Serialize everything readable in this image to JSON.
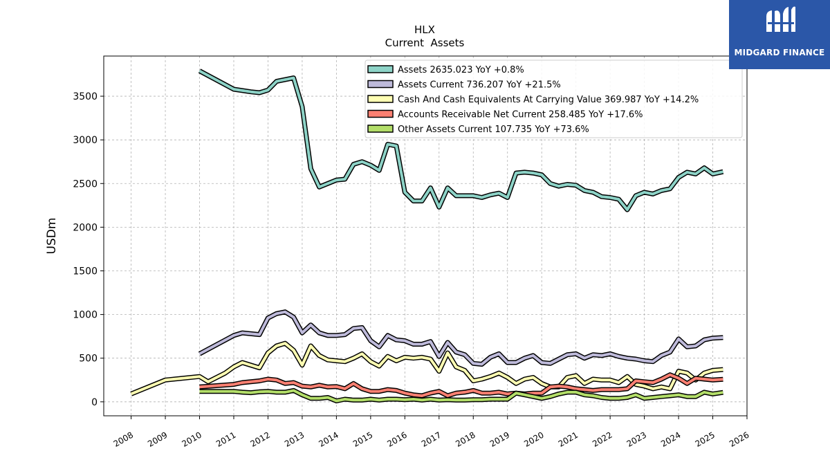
{
  "brand": {
    "name": "MIDGARD FINANCE",
    "bg_color": "#2b57a8"
  },
  "chart_data": {
    "type": "line",
    "title": "HLX",
    "subtitle": "Current  Assets",
    "ylabel": "USDm",
    "xlabel": "",
    "xlim": [
      2007.2,
      2026.0
    ],
    "ylim": [
      -160,
      3960
    ],
    "x_ticks": [
      2008,
      2009,
      2010,
      2011,
      2012,
      2013,
      2014,
      2015,
      2016,
      2017,
      2018,
      2019,
      2020,
      2021,
      2022,
      2023,
      2024,
      2025,
      2026
    ],
    "x_tick_labels": [
      "2008",
      "2009",
      "2010",
      "2011",
      "2012",
      "2013",
      "2014",
      "2015",
      "2016",
      "2017",
      "2018",
      "2019",
      "2020",
      "2021",
      "2022",
      "2023",
      "2024",
      "2025",
      "2026"
    ],
    "y_ticks": [
      0,
      500,
      1000,
      1500,
      2000,
      2500,
      3000,
      3500
    ],
    "y_tick_labels": [
      "0",
      "500",
      "1000",
      "1500",
      "2000",
      "2500",
      "3000",
      "3500"
    ],
    "grid": true,
    "legend_position": "top-right",
    "series": [
      {
        "name": "Assets  2635.023 YoY +0.8%",
        "color": "#8dd3c7",
        "points": [
          [
            2010.0,
            3790
          ],
          [
            2011.0,
            3580
          ],
          [
            2011.5,
            3550
          ],
          [
            2011.75,
            3540
          ],
          [
            2012.0,
            3570
          ],
          [
            2012.25,
            3670
          ],
          [
            2012.5,
            3690
          ],
          [
            2012.75,
            3710
          ],
          [
            2013.0,
            3380
          ],
          [
            2013.25,
            2670
          ],
          [
            2013.5,
            2460
          ],
          [
            2014.0,
            2540
          ],
          [
            2014.25,
            2550
          ],
          [
            2014.5,
            2720
          ],
          [
            2014.75,
            2750
          ],
          [
            2015.0,
            2710
          ],
          [
            2015.25,
            2650
          ],
          [
            2015.5,
            2950
          ],
          [
            2015.75,
            2930
          ],
          [
            2016.0,
            2400
          ],
          [
            2016.25,
            2300
          ],
          [
            2016.5,
            2300
          ],
          [
            2016.75,
            2450
          ],
          [
            2017.0,
            2230
          ],
          [
            2017.25,
            2450
          ],
          [
            2017.5,
            2360
          ],
          [
            2017.75,
            2360
          ],
          [
            2018.0,
            2360
          ],
          [
            2018.25,
            2340
          ],
          [
            2018.5,
            2370
          ],
          [
            2018.75,
            2390
          ],
          [
            2019.0,
            2340
          ],
          [
            2019.25,
            2620
          ],
          [
            2019.5,
            2630
          ],
          [
            2019.75,
            2620
          ],
          [
            2020.0,
            2600
          ],
          [
            2020.25,
            2500
          ],
          [
            2020.5,
            2470
          ],
          [
            2020.75,
            2490
          ],
          [
            2021.0,
            2480
          ],
          [
            2021.25,
            2420
          ],
          [
            2021.5,
            2400
          ],
          [
            2021.75,
            2350
          ],
          [
            2022.0,
            2340
          ],
          [
            2022.25,
            2320
          ],
          [
            2022.5,
            2200
          ],
          [
            2022.75,
            2360
          ],
          [
            2023.0,
            2400
          ],
          [
            2023.25,
            2380
          ],
          [
            2023.5,
            2420
          ],
          [
            2023.75,
            2440
          ],
          [
            2024.0,
            2570
          ],
          [
            2024.25,
            2630
          ],
          [
            2024.5,
            2610
          ],
          [
            2024.75,
            2680
          ],
          [
            2025.0,
            2610
          ],
          [
            2025.3,
            2635
          ]
        ]
      },
      {
        "name": "Assets Current  736.207 YoY +21.5%",
        "color": "#bebada",
        "points": [
          [
            2010.0,
            550
          ],
          [
            2011.0,
            760
          ],
          [
            2011.25,
            790
          ],
          [
            2011.75,
            770
          ],
          [
            2012.0,
            960
          ],
          [
            2012.25,
            1010
          ],
          [
            2012.5,
            1030
          ],
          [
            2012.75,
            970
          ],
          [
            2013.0,
            790
          ],
          [
            2013.25,
            880
          ],
          [
            2013.5,
            790
          ],
          [
            2013.75,
            760
          ],
          [
            2014.0,
            760
          ],
          [
            2014.25,
            770
          ],
          [
            2014.5,
            840
          ],
          [
            2014.75,
            850
          ],
          [
            2015.0,
            700
          ],
          [
            2015.25,
            630
          ],
          [
            2015.5,
            760
          ],
          [
            2015.75,
            710
          ],
          [
            2016.0,
            700
          ],
          [
            2016.25,
            660
          ],
          [
            2016.5,
            660
          ],
          [
            2016.75,
            690
          ],
          [
            2017.0,
            520
          ],
          [
            2017.25,
            680
          ],
          [
            2017.5,
            570
          ],
          [
            2017.75,
            540
          ],
          [
            2018.0,
            440
          ],
          [
            2018.25,
            430
          ],
          [
            2018.5,
            510
          ],
          [
            2018.75,
            550
          ],
          [
            2019.0,
            450
          ],
          [
            2019.25,
            450
          ],
          [
            2019.5,
            500
          ],
          [
            2019.75,
            530
          ],
          [
            2020.0,
            450
          ],
          [
            2020.25,
            440
          ],
          [
            2020.5,
            490
          ],
          [
            2020.75,
            540
          ],
          [
            2021.0,
            550
          ],
          [
            2021.25,
            500
          ],
          [
            2021.5,
            540
          ],
          [
            2021.75,
            530
          ],
          [
            2022.0,
            550
          ],
          [
            2022.25,
            520
          ],
          [
            2022.5,
            500
          ],
          [
            2022.75,
            490
          ],
          [
            2023.0,
            470
          ],
          [
            2023.25,
            460
          ],
          [
            2023.5,
            530
          ],
          [
            2023.75,
            570
          ],
          [
            2024.0,
            720
          ],
          [
            2024.25,
            630
          ],
          [
            2024.5,
            640
          ],
          [
            2024.75,
            710
          ],
          [
            2025.0,
            730
          ],
          [
            2025.3,
            736
          ]
        ]
      },
      {
        "name": "Cash And Cash Equivalents At Carrying Value  369.987 YoY +14.2%",
        "color": "#ffffb3",
        "points": [
          [
            2008.0,
            90
          ],
          [
            2009.0,
            250
          ],
          [
            2010.0,
            290
          ],
          [
            2010.25,
            230
          ],
          [
            2010.75,
            330
          ],
          [
            2011.0,
            400
          ],
          [
            2011.25,
            450
          ],
          [
            2011.75,
            390
          ],
          [
            2012.0,
            560
          ],
          [
            2012.25,
            640
          ],
          [
            2012.5,
            670
          ],
          [
            2012.75,
            590
          ],
          [
            2013.0,
            420
          ],
          [
            2013.25,
            640
          ],
          [
            2013.5,
            530
          ],
          [
            2013.75,
            480
          ],
          [
            2014.0,
            470
          ],
          [
            2014.25,
            460
          ],
          [
            2014.5,
            500
          ],
          [
            2014.75,
            550
          ],
          [
            2015.0,
            460
          ],
          [
            2015.25,
            410
          ],
          [
            2015.5,
            520
          ],
          [
            2015.75,
            470
          ],
          [
            2016.0,
            510
          ],
          [
            2016.25,
            500
          ],
          [
            2016.5,
            510
          ],
          [
            2016.75,
            490
          ],
          [
            2017.0,
            350
          ],
          [
            2017.25,
            560
          ],
          [
            2017.5,
            400
          ],
          [
            2017.75,
            360
          ],
          [
            2018.0,
            240
          ],
          [
            2018.25,
            260
          ],
          [
            2018.5,
            290
          ],
          [
            2018.75,
            330
          ],
          [
            2019.0,
            280
          ],
          [
            2019.25,
            210
          ],
          [
            2019.5,
            260
          ],
          [
            2019.75,
            280
          ],
          [
            2020.0,
            210
          ],
          [
            2020.25,
            170
          ],
          [
            2020.5,
            170
          ],
          [
            2020.75,
            280
          ],
          [
            2021.0,
            300
          ],
          [
            2021.25,
            210
          ],
          [
            2021.5,
            260
          ],
          [
            2021.75,
            250
          ],
          [
            2022.0,
            250
          ],
          [
            2022.25,
            220
          ],
          [
            2022.5,
            290
          ],
          [
            2022.75,
            200
          ],
          [
            2023.0,
            180
          ],
          [
            2023.25,
            150
          ],
          [
            2023.5,
            170
          ],
          [
            2023.75,
            150
          ],
          [
            2024.0,
            350
          ],
          [
            2024.25,
            330
          ],
          [
            2024.5,
            250
          ],
          [
            2024.75,
            330
          ],
          [
            2025.0,
            360
          ],
          [
            2025.3,
            370
          ]
        ]
      },
      {
        "name": "Accounts Receivable Net Current  258.485 YoY +17.6%",
        "color": "#fb8072",
        "points": [
          [
            2010.0,
            170
          ],
          [
            2011.0,
            200
          ],
          [
            2011.25,
            220
          ],
          [
            2011.75,
            240
          ],
          [
            2012.0,
            260
          ],
          [
            2012.25,
            250
          ],
          [
            2012.5,
            210
          ],
          [
            2012.75,
            220
          ],
          [
            2013.0,
            180
          ],
          [
            2013.25,
            170
          ],
          [
            2013.5,
            190
          ],
          [
            2013.75,
            170
          ],
          [
            2014.0,
            175
          ],
          [
            2014.25,
            150
          ],
          [
            2014.5,
            210
          ],
          [
            2014.75,
            150
          ],
          [
            2015.0,
            120
          ],
          [
            2015.25,
            120
          ],
          [
            2015.5,
            140
          ],
          [
            2015.75,
            130
          ],
          [
            2016.0,
            100
          ],
          [
            2016.25,
            80
          ],
          [
            2016.5,
            70
          ],
          [
            2016.75,
            100
          ],
          [
            2017.0,
            120
          ],
          [
            2017.25,
            70
          ],
          [
            2017.5,
            100
          ],
          [
            2017.75,
            110
          ],
          [
            2018.0,
            130
          ],
          [
            2018.25,
            100
          ],
          [
            2018.5,
            100
          ],
          [
            2018.75,
            110
          ],
          [
            2019.0,
            90
          ],
          [
            2019.25,
            100
          ],
          [
            2019.5,
            90
          ],
          [
            2019.75,
            100
          ],
          [
            2020.0,
            100
          ],
          [
            2020.25,
            170
          ],
          [
            2020.5,
            180
          ],
          [
            2020.75,
            170
          ],
          [
            2021.0,
            150
          ],
          [
            2021.25,
            140
          ],
          [
            2021.5,
            130
          ],
          [
            2021.75,
            140
          ],
          [
            2022.0,
            140
          ],
          [
            2022.25,
            140
          ],
          [
            2022.5,
            150
          ],
          [
            2022.75,
            240
          ],
          [
            2023.0,
            230
          ],
          [
            2023.25,
            220
          ],
          [
            2023.5,
            260
          ],
          [
            2023.75,
            310
          ],
          [
            2024.0,
            270
          ],
          [
            2024.25,
            210
          ],
          [
            2024.5,
            270
          ],
          [
            2024.75,
            260
          ],
          [
            2025.0,
            250
          ],
          [
            2025.3,
            258
          ]
        ]
      },
      {
        "name": "Other Assets Current  107.735 YoY +73.6%",
        "color": "#b3de69",
        "points": [
          [
            2010.0,
            120
          ],
          [
            2011.0,
            120
          ],
          [
            2011.25,
            110
          ],
          [
            2011.5,
            105
          ],
          [
            2011.75,
            115
          ],
          [
            2012.0,
            120
          ],
          [
            2012.25,
            110
          ],
          [
            2012.5,
            110
          ],
          [
            2012.75,
            130
          ],
          [
            2013.0,
            80
          ],
          [
            2013.25,
            40
          ],
          [
            2013.5,
            40
          ],
          [
            2013.75,
            50
          ],
          [
            2014.0,
            10
          ],
          [
            2014.25,
            30
          ],
          [
            2014.5,
            20
          ],
          [
            2014.75,
            20
          ],
          [
            2015.0,
            30
          ],
          [
            2015.25,
            20
          ],
          [
            2015.5,
            30
          ],
          [
            2015.75,
            30
          ],
          [
            2016.0,
            25
          ],
          [
            2016.25,
            30
          ],
          [
            2016.5,
            20
          ],
          [
            2016.75,
            30
          ],
          [
            2017.0,
            20
          ],
          [
            2017.25,
            25
          ],
          [
            2017.5,
            20
          ],
          [
            2017.75,
            20
          ],
          [
            2018.0,
            25
          ],
          [
            2018.25,
            25
          ],
          [
            2018.5,
            30
          ],
          [
            2018.75,
            30
          ],
          [
            2019.0,
            30
          ],
          [
            2019.25,
            100
          ],
          [
            2019.5,
            80
          ],
          [
            2019.75,
            60
          ],
          [
            2020.0,
            40
          ],
          [
            2020.25,
            60
          ],
          [
            2020.5,
            90
          ],
          [
            2020.75,
            110
          ],
          [
            2021.0,
            110
          ],
          [
            2021.25,
            80
          ],
          [
            2021.5,
            70
          ],
          [
            2021.75,
            50
          ],
          [
            2022.0,
            40
          ],
          [
            2022.25,
            40
          ],
          [
            2022.5,
            50
          ],
          [
            2022.75,
            80
          ],
          [
            2023.0,
            40
          ],
          [
            2023.25,
            50
          ],
          [
            2023.5,
            60
          ],
          [
            2023.75,
            70
          ],
          [
            2024.0,
            80
          ],
          [
            2024.25,
            60
          ],
          [
            2024.5,
            60
          ],
          [
            2024.75,
            110
          ],
          [
            2025.0,
            90
          ],
          [
            2025.3,
            108
          ]
        ]
      }
    ]
  }
}
